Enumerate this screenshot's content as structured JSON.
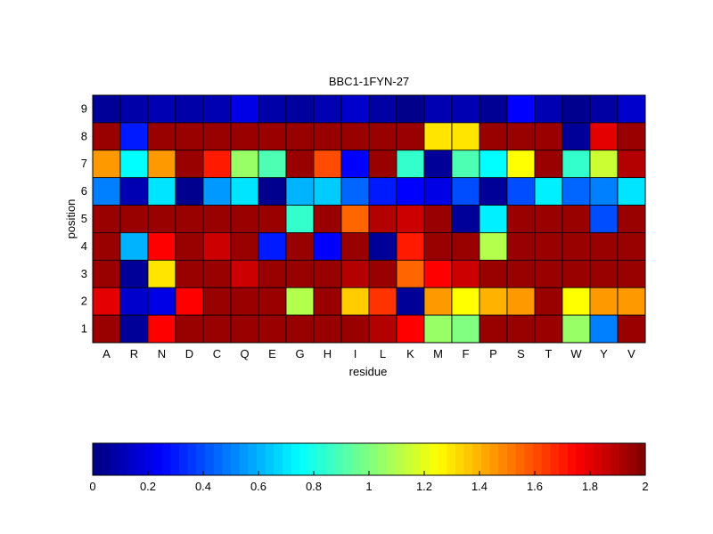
{
  "chart_data": [
    {
      "type": "heatmap",
      "title": "BBC1-1FYN-27",
      "xlabel": "residue",
      "ylabel": "position",
      "x_categories": [
        "A",
        "R",
        "N",
        "D",
        "C",
        "Q",
        "E",
        "G",
        "H",
        "I",
        "L",
        "K",
        "M",
        "F",
        "P",
        "S",
        "T",
        "W",
        "Y",
        "V"
      ],
      "y_categories": [
        "9",
        "8",
        "7",
        "6",
        "5",
        "4",
        "3",
        "2",
        "1"
      ],
      "value_range": [
        0,
        2
      ],
      "colormap": "jet",
      "values": [
        [
          0.05,
          0.08,
          0.1,
          0.08,
          0.1,
          0.2,
          0.08,
          0.06,
          0.1,
          0.15,
          0.07,
          0.02,
          0.1,
          0.1,
          0.04,
          0.25,
          0.1,
          0.03,
          0.07,
          0.15
        ],
        [
          1.95,
          0.3,
          1.95,
          1.95,
          1.95,
          1.95,
          1.95,
          1.95,
          1.95,
          1.95,
          1.95,
          1.95,
          1.3,
          1.3,
          1.95,
          1.95,
          1.95,
          0.05,
          1.8,
          1.95
        ],
        [
          1.45,
          0.75,
          1.45,
          1.95,
          1.7,
          1.05,
          0.9,
          1.95,
          1.6,
          0.25,
          1.95,
          0.85,
          0.05,
          0.9,
          0.75,
          1.25,
          1.95,
          0.85,
          1.15,
          1.9
        ],
        [
          0.5,
          0.1,
          0.7,
          0.03,
          0.55,
          0.7,
          0.03,
          0.6,
          0.65,
          0.45,
          0.3,
          0.25,
          0.2,
          0.4,
          0.05,
          0.4,
          0.72,
          0.45,
          0.5,
          0.7
        ],
        [
          1.95,
          1.95,
          1.95,
          1.95,
          1.95,
          1.95,
          1.95,
          0.85,
          1.95,
          1.55,
          1.9,
          1.85,
          1.95,
          0.05,
          0.72,
          1.95,
          1.95,
          1.95,
          0.4,
          1.95
        ],
        [
          1.95,
          0.6,
          1.75,
          1.95,
          1.85,
          1.95,
          0.3,
          1.95,
          0.25,
          1.95,
          0.05,
          1.7,
          1.95,
          1.95,
          1.1,
          1.95,
          1.95,
          1.95,
          1.95,
          1.95
        ],
        [
          1.95,
          0.05,
          1.3,
          1.95,
          1.95,
          1.85,
          1.95,
          1.95,
          1.95,
          1.9,
          1.95,
          1.55,
          1.75,
          1.85,
          1.95,
          1.95,
          1.95,
          1.95,
          1.95,
          1.95
        ],
        [
          1.8,
          0.15,
          0.2,
          1.75,
          1.95,
          1.95,
          1.95,
          1.1,
          1.95,
          1.35,
          1.65,
          0.05,
          1.45,
          1.25,
          1.4,
          1.45,
          1.95,
          1.25,
          1.45,
          1.45
        ],
        [
          1.95,
          0.05,
          1.75,
          1.95,
          1.95,
          1.95,
          1.95,
          1.95,
          1.95,
          1.95,
          1.9,
          1.75,
          1.05,
          1.0,
          1.95,
          1.95,
          1.95,
          1.05,
          0.5,
          1.95
        ]
      ]
    },
    {
      "type": "colorbar",
      "range": [
        0,
        2
      ],
      "ticks": [
        "0",
        "0.2",
        "0.4",
        "0.6",
        "0.8",
        "1",
        "1.2",
        "1.4",
        "1.6",
        "1.8",
        "2"
      ]
    }
  ]
}
